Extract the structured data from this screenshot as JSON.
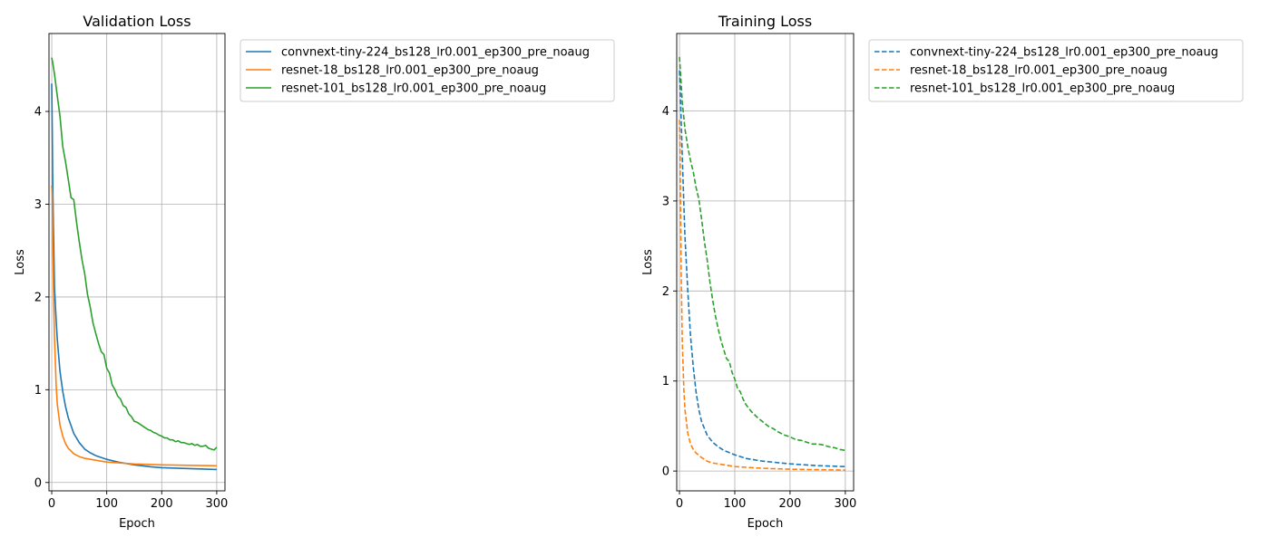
{
  "chart_data": [
    {
      "type": "line",
      "title": "Validation Loss",
      "xlabel": "Epoch",
      "ylabel": "Loss",
      "xlim": [
        -5,
        315
      ],
      "ylim": [
        -0.09,
        4.84
      ],
      "xticks": [
        0,
        100,
        200,
        300
      ],
      "yticks": [
        0,
        1,
        2,
        3,
        4
      ],
      "grid": true,
      "legend_placement": "outside-right-top",
      "line_style": "solid",
      "series": [
        {
          "name": "convnext-tiny-224_bs128_lr0.001_ep300_pre_noaug",
          "color": "#1f77b4",
          "x": [
            0,
            1,
            2,
            3,
            5,
            8,
            10,
            15,
            20,
            25,
            30,
            40,
            50,
            60,
            70,
            80,
            100,
            120,
            150,
            180,
            200,
            250,
            300
          ],
          "y": [
            4.3,
            3.8,
            3.2,
            2.75,
            2.1,
            1.75,
            1.55,
            1.2,
            0.98,
            0.82,
            0.7,
            0.53,
            0.43,
            0.36,
            0.32,
            0.29,
            0.25,
            0.22,
            0.19,
            0.17,
            0.16,
            0.15,
            0.14
          ]
        },
        {
          "name": "resnet-18_bs128_lr0.001_ep300_pre_noaug",
          "color": "#ff7f0e",
          "x": [
            0,
            1,
            2,
            3,
            5,
            8,
            10,
            15,
            20,
            25,
            30,
            40,
            50,
            60,
            80,
            100,
            150,
            200,
            250,
            300
          ],
          "y": [
            3.2,
            3.1,
            2.55,
            2.1,
            1.55,
            1.05,
            0.85,
            0.62,
            0.5,
            0.42,
            0.37,
            0.31,
            0.28,
            0.26,
            0.24,
            0.22,
            0.2,
            0.19,
            0.185,
            0.18
          ]
        },
        {
          "name": "resnet-101_bs128_lr0.001_ep300_pre_noaug",
          "color": "#2ca02c",
          "x": [
            0,
            2,
            5,
            10,
            15,
            20,
            25,
            30,
            35,
            40,
            45,
            50,
            55,
            60,
            65,
            70,
            75,
            80,
            85,
            90,
            95,
            100,
            105,
            110,
            115,
            120,
            125,
            130,
            135,
            140,
            145,
            150,
            155,
            160,
            165,
            170,
            175,
            180,
            185,
            190,
            195,
            200,
            205,
            210,
            215,
            220,
            225,
            230,
            235,
            240,
            245,
            250,
            255,
            260,
            265,
            270,
            275,
            280,
            285,
            290,
            295,
            300
          ],
          "y": [
            4.58,
            4.52,
            4.4,
            4.17,
            3.95,
            3.62,
            3.46,
            3.27,
            3.07,
            3.05,
            2.81,
            2.6,
            2.4,
            2.25,
            2.03,
            1.89,
            1.72,
            1.61,
            1.5,
            1.41,
            1.38,
            1.23,
            1.18,
            1.05,
            1.0,
            0.93,
            0.9,
            0.83,
            0.81,
            0.74,
            0.71,
            0.66,
            0.65,
            0.63,
            0.61,
            0.59,
            0.57,
            0.56,
            0.54,
            0.53,
            0.51,
            0.5,
            0.48,
            0.48,
            0.46,
            0.46,
            0.44,
            0.45,
            0.43,
            0.43,
            0.42,
            0.41,
            0.42,
            0.4,
            0.41,
            0.39,
            0.39,
            0.4,
            0.37,
            0.36,
            0.35,
            0.38
          ]
        }
      ]
    },
    {
      "type": "line",
      "title": "Training Loss",
      "xlabel": "Epoch",
      "ylabel": "Loss",
      "xlim": [
        -5,
        315
      ],
      "ylim": [
        -0.22,
        4.86
      ],
      "xticks": [
        0,
        100,
        200,
        300
      ],
      "yticks": [
        0,
        1,
        2,
        3,
        4
      ],
      "grid": true,
      "legend_placement": "outside-right-top",
      "line_style": "dashed",
      "series": [
        {
          "name": "convnext-tiny-224_bs128_lr0.001_ep300_pre_noaug",
          "color": "#1f77b4",
          "x": [
            0,
            2,
            5,
            8,
            10,
            15,
            20,
            25,
            30,
            35,
            40,
            50,
            60,
            70,
            80,
            100,
            120,
            150,
            200,
            250,
            300
          ],
          "y": [
            4.45,
            4.1,
            3.5,
            2.95,
            2.6,
            2.0,
            1.5,
            1.15,
            0.88,
            0.68,
            0.55,
            0.4,
            0.32,
            0.27,
            0.23,
            0.18,
            0.14,
            0.11,
            0.08,
            0.06,
            0.05
          ]
        },
        {
          "name": "resnet-18_bs128_lr0.001_ep300_pre_noaug",
          "color": "#ff7f0e",
          "x": [
            0,
            1,
            2,
            3,
            5,
            8,
            10,
            15,
            20,
            25,
            30,
            40,
            50,
            60,
            80,
            100,
            150,
            200,
            250,
            300
          ],
          "y": [
            3.9,
            3.6,
            2.9,
            2.2,
            1.45,
            0.9,
            0.68,
            0.42,
            0.3,
            0.24,
            0.2,
            0.15,
            0.11,
            0.09,
            0.07,
            0.05,
            0.03,
            0.02,
            0.015,
            0.01
          ]
        },
        {
          "name": "resnet-101_bs128_lr0.001_ep300_pre_noaug",
          "color": "#2ca02c",
          "x": [
            0,
            2,
            5,
            10,
            15,
            20,
            25,
            30,
            35,
            40,
            45,
            50,
            55,
            60,
            65,
            70,
            75,
            80,
            85,
            90,
            95,
            100,
            105,
            110,
            115,
            120,
            130,
            140,
            150,
            160,
            170,
            180,
            190,
            200,
            210,
            220,
            230,
            240,
            250,
            260,
            270,
            280,
            290,
            300
          ],
          "y": [
            4.6,
            4.4,
            4.1,
            3.8,
            3.6,
            3.45,
            3.32,
            3.15,
            3.02,
            2.8,
            2.55,
            2.35,
            2.1,
            1.9,
            1.72,
            1.58,
            1.45,
            1.35,
            1.25,
            1.22,
            1.1,
            1.02,
            0.92,
            0.88,
            0.8,
            0.74,
            0.66,
            0.6,
            0.55,
            0.5,
            0.47,
            0.43,
            0.4,
            0.38,
            0.35,
            0.34,
            0.32,
            0.3,
            0.3,
            0.29,
            0.27,
            0.26,
            0.24,
            0.23
          ]
        }
      ]
    }
  ]
}
